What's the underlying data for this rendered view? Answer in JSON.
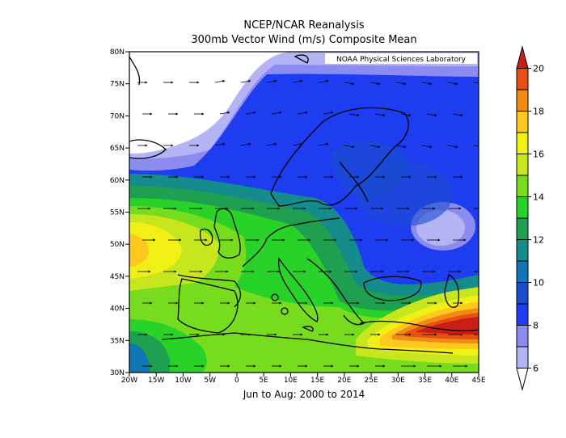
{
  "title_line1": "NCEP/NCAR Reanalysis",
  "title_line2": "300mb Vector Wind (m/s) Composite Mean",
  "subtitle": "Jun to Aug: 2000 to 2014",
  "watermark": "NOAA Physical Sciences Laboratory",
  "lat_ticks": [
    "80N",
    "75N",
    "70N",
    "65N",
    "60N",
    "55N",
    "50N",
    "45N",
    "40N",
    "35N",
    "30N"
  ],
  "lon_ticks": [
    "20W",
    "15W",
    "10W",
    "5W",
    "0",
    "5E",
    "10E",
    "15E",
    "20E",
    "25E",
    "30E",
    "35E",
    "40E",
    "45E"
  ],
  "colorbar": {
    "labels": [
      "6",
      "8",
      "10",
      "12",
      "14",
      "16",
      "18",
      "20"
    ],
    "bins": [
      {
        "range": "<6",
        "color": "#ffffff"
      },
      {
        "range": "6-7",
        "color": "#b4b4f5"
      },
      {
        "range": "7-8",
        "color": "#8c8cf0"
      },
      {
        "range": "8-9",
        "color": "#1e3cf0"
      },
      {
        "range": "9-10",
        "color": "#1a4cd0"
      },
      {
        "range": "10-11",
        "color": "#0f78b4"
      },
      {
        "range": "11-12",
        "color": "#148c8c"
      },
      {
        "range": "12-13",
        "color": "#1ea050"
      },
      {
        "range": "13-14",
        "color": "#28d228"
      },
      {
        "range": "14-15",
        "color": "#78dc1e"
      },
      {
        "range": "15-16",
        "color": "#c8e61e"
      },
      {
        "range": "16-17",
        "color": "#f0f014"
      },
      {
        "range": "17-18",
        "color": "#ffc81e"
      },
      {
        "range": "18-19",
        "color": "#f08c14"
      },
      {
        "range": "19-20",
        "color": "#e65014"
      },
      {
        "range": ">20",
        "color": "#c81e14"
      }
    ]
  }
}
